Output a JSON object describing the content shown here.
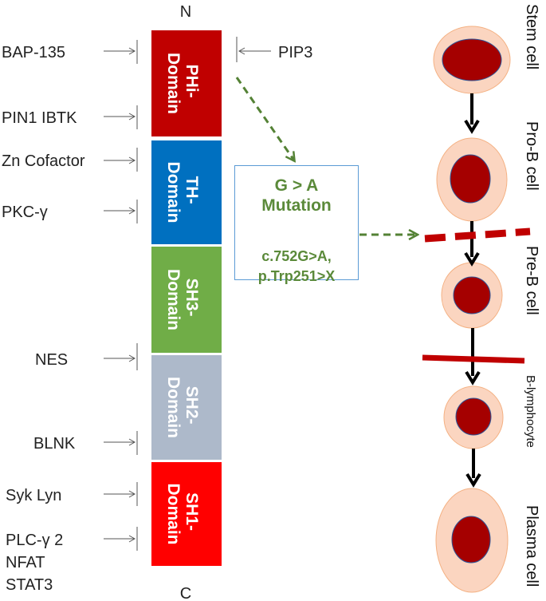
{
  "protein": {
    "n_terminus": "N",
    "c_terminus": "C",
    "domains": [
      {
        "label": "PHi-Domain",
        "line1": "PHi-",
        "line2": "Domain",
        "color": "#c00000"
      },
      {
        "label": "TH-Domain",
        "line1": "TH-",
        "line2": "Domain",
        "color": "#0070c0"
      },
      {
        "label": "SH3-Domain",
        "line1": "SH3-",
        "line2": "Domain",
        "color": "#70ad47"
      },
      {
        "label": "SH2-Domain",
        "line1": "SH2-",
        "line2": "Domain",
        "color": "#adb9ca"
      },
      {
        "label": "SH1-Domain",
        "line1": "SH1-",
        "line2": "Domain",
        "color": "#ff0000"
      }
    ]
  },
  "binding_partners": {
    "left": [
      {
        "lines": [
          "BAP-135"
        ]
      },
      {
        "lines": [
          "PIN1 IBTK"
        ]
      },
      {
        "lines": [
          "Zn Cofactor"
        ]
      },
      {
        "lines": [
          "PKC-γ"
        ]
      },
      {
        "lines": [
          "NES"
        ]
      },
      {
        "lines": [
          "BLNK"
        ]
      },
      {
        "lines": [
          "Syk Lyn"
        ]
      },
      {
        "lines": [
          "PLC-γ 2",
          "NFAT",
          "STAT3"
        ]
      }
    ],
    "right": [
      {
        "lines": [
          "PIP3"
        ]
      }
    ]
  },
  "mutation": {
    "title_line1": "G > A",
    "title_line2": "Mutation",
    "detail_line1": "c.752G>A,",
    "detail_line2": "p.Trp251>X",
    "arrow_color": "#548235",
    "box_border_color": "#5b9bd5"
  },
  "cell_stages": [
    {
      "label": "Stem cell"
    },
    {
      "label": "Pro-B cell"
    },
    {
      "label": "Pre-B cell"
    },
    {
      "label": "B-lymphocyte"
    },
    {
      "label": "Plasma cell"
    }
  ],
  "colors": {
    "cell_outer": "#fbd5c0",
    "cell_outer_stroke": "#f4b183",
    "nucleus": "#a50000",
    "nucleus_stroke": "#2f5597",
    "block_bar": "#c00000"
  }
}
